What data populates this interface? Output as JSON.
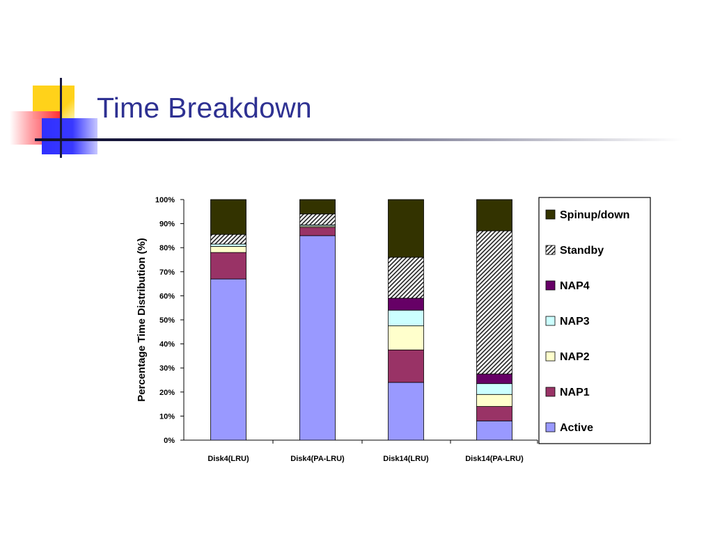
{
  "slide": {
    "title": "Time Breakdown"
  },
  "chart_data": {
    "type": "bar",
    "stacked": true,
    "ylabel": "Percentage Time Distribution (%)",
    "xlabel": "",
    "ylim": [
      0,
      100
    ],
    "y_ticks": [
      "0%",
      "10%",
      "20%",
      "30%",
      "40%",
      "50%",
      "60%",
      "70%",
      "80%",
      "90%",
      "100%"
    ],
    "grid": false,
    "legend_position": "right",
    "categories": [
      "Disk4(LRU)",
      "Disk4(PA-LRU)",
      "Disk14(LRU)",
      "Disk14(PA-LRU)"
    ],
    "series": [
      {
        "name": "Active",
        "color": "#9999ff",
        "pattern": "solid",
        "values": [
          67,
          85,
          24,
          8
        ]
      },
      {
        "name": "NAP1",
        "color": "#993366",
        "pattern": "solid",
        "values": [
          11,
          3.5,
          13.5,
          6
        ]
      },
      {
        "name": "NAP2",
        "color": "#ffffcc",
        "pattern": "solid",
        "values": [
          2.5,
          0.5,
          10,
          5
        ]
      },
      {
        "name": "NAP3",
        "color": "#ccffff",
        "pattern": "solid",
        "values": [
          1,
          0.5,
          6.5,
          4.5
        ]
      },
      {
        "name": "NAP4",
        "color": "#660066",
        "pattern": "solid",
        "values": [
          0,
          0,
          5,
          4
        ]
      },
      {
        "name": "Standby",
        "color": "#ffffff",
        "pattern": "hatch",
        "values": [
          4,
          4.5,
          17,
          59.5
        ]
      },
      {
        "name": "Spinup/down",
        "color": "#333300",
        "pattern": "solid",
        "values": [
          14.5,
          6,
          24,
          13
        ]
      }
    ],
    "legend": [
      "Spinup/down",
      "Standby",
      "NAP4",
      "NAP3",
      "NAP2",
      "NAP1",
      "Active"
    ]
  }
}
